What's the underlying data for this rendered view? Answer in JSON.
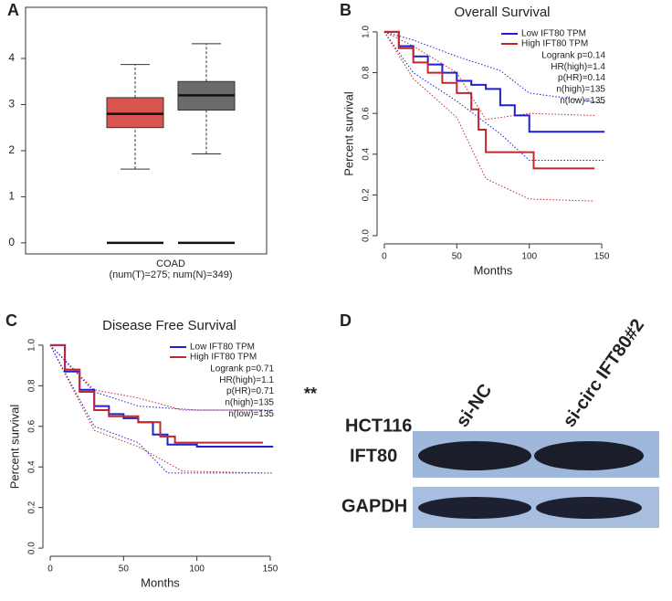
{
  "panels": [
    "A",
    "B",
    "C",
    "D"
  ],
  "significance": "**",
  "chart_data": [
    {
      "type": "box",
      "xlabel": "COAD",
      "note": "(num(T)=275; num(N)=349)",
      "ylim": [
        -0.24,
        5.11
      ],
      "yticks": [
        0,
        1,
        2,
        3,
        4
      ],
      "boxes": [
        {
          "color": "#d9534f",
          "min": 1.6,
          "q1": 2.5,
          "median": 2.8,
          "q3": 3.15,
          "max": 3.87,
          "baseline": 0
        },
        {
          "color": "#6b6b6b",
          "min": 1.93,
          "q1": 2.88,
          "median": 3.2,
          "q3": 3.5,
          "max": 4.32,
          "baseline": 0
        }
      ]
    },
    {
      "type": "line",
      "title": "Overall Survival",
      "xlabel": "Months",
      "ylabel": "Percent survival",
      "xlim": [
        -5,
        155
      ],
      "ylim": [
        -0.04,
        1.04
      ],
      "xticks": [
        0,
        50,
        100,
        150
      ],
      "yticks": [
        {
          "value": 0,
          "label": "0.0"
        },
        0.2,
        0.4,
        0.6,
        0.8,
        {
          "value": 1,
          "label": "1.0"
        }
      ],
      "notes": [
        "Logrank p=0.14",
        "HR(high)=1.4",
        "p(HR)=0.14",
        "n(high)=135",
        "n(low)=135"
      ],
      "series": [
        {
          "name": "Low IFT80 TPM",
          "color": "#1f1fd1",
          "x": [
            0,
            10,
            10,
            20,
            20,
            30,
            30,
            40,
            40,
            50,
            50,
            60,
            60,
            70,
            70,
            80,
            80,
            90,
            90,
            100,
            100,
            152
          ],
          "values": [
            1,
            1,
            0.93,
            0.93,
            0.88,
            0.88,
            0.84,
            0.84,
            0.8,
            0.8,
            0.76,
            0.76,
            0.74,
            0.74,
            0.72,
            0.72,
            0.64,
            0.64,
            0.59,
            0.59,
            0.51,
            0.51
          ]
        },
        {
          "name": "High IFT80 TPM",
          "color": "#c0282b",
          "x": [
            0,
            10,
            10,
            20,
            20,
            30,
            30,
            40,
            40,
            50,
            50,
            60,
            60,
            65,
            65,
            70,
            70,
            103,
            103,
            145
          ],
          "values": [
            1,
            1,
            0.92,
            0.92,
            0.85,
            0.85,
            0.8,
            0.8,
            0.75,
            0.75,
            0.7,
            0.7,
            0.62,
            0.62,
            0.52,
            0.52,
            0.41,
            0.41,
            0.33,
            0.33
          ]
        }
      ],
      "bands": [
        {
          "color": "#1f1fd1",
          "x": [
            0,
            20,
            50,
            80,
            100,
            152
          ],
          "values": [
            1,
            0.96,
            0.88,
            0.81,
            0.7,
            0.65
          ]
        },
        {
          "color": "#1f1fd1",
          "x": [
            0,
            20,
            50,
            80,
            100,
            152
          ],
          "values": [
            1,
            0.8,
            0.66,
            0.5,
            0.37,
            0.37
          ]
        },
        {
          "color": "#c0282b",
          "x": [
            0,
            20,
            50,
            70,
            100,
            145
          ],
          "values": [
            1,
            0.93,
            0.8,
            0.57,
            0.6,
            0.59
          ]
        },
        {
          "color": "#c0282b",
          "x": [
            0,
            20,
            50,
            70,
            100,
            145
          ],
          "values": [
            1,
            0.77,
            0.58,
            0.28,
            0.18,
            0.17
          ]
        }
      ]
    },
    {
      "type": "line",
      "title": "Disease Free Survival",
      "xlabel": "Months",
      "ylabel": "Percent survival",
      "xlim": [
        -5,
        155
      ],
      "ylim": [
        -0.04,
        1.04
      ],
      "xticks": [
        0,
        50,
        100,
        150
      ],
      "yticks": [
        {
          "value": 0,
          "label": "0.0"
        },
        0.2,
        0.4,
        0.6,
        0.8,
        {
          "value": 1,
          "label": "1.0"
        }
      ],
      "notes": [
        "Logrank p=0.71",
        "HR(high)=1.1",
        "p(HR)=0.71",
        "n(high)=135",
        "n(low)=135"
      ],
      "series": [
        {
          "name": "Low IFT80 TPM",
          "color": "#1f1fd1",
          "x": [
            0,
            10,
            10,
            20,
            20,
            30,
            30,
            40,
            40,
            50,
            50,
            60,
            60,
            70,
            70,
            80,
            80,
            100,
            100,
            152
          ],
          "values": [
            1,
            1,
            0.87,
            0.87,
            0.78,
            0.78,
            0.7,
            0.7,
            0.66,
            0.66,
            0.64,
            0.64,
            0.62,
            0.62,
            0.56,
            0.56,
            0.51,
            0.51,
            0.5,
            0.5
          ]
        },
        {
          "name": "High IFT80 TPM",
          "color": "#c0282b",
          "x": [
            0,
            10,
            10,
            20,
            20,
            30,
            30,
            40,
            40,
            60,
            60,
            75,
            75,
            85,
            85,
            145
          ],
          "values": [
            1,
            1,
            0.88,
            0.88,
            0.77,
            0.77,
            0.68,
            0.68,
            0.65,
            0.65,
            0.62,
            0.62,
            0.55,
            0.55,
            0.52,
            0.52
          ]
        }
      ],
      "bands": [
        {
          "color": "#c0282b",
          "x": [
            0,
            30,
            60,
            90,
            145
          ],
          "values": [
            1,
            0.78,
            0.74,
            0.68,
            0.68
          ]
        },
        {
          "color": "#1f1fd1",
          "x": [
            0,
            30,
            60,
            100,
            152
          ],
          "values": [
            1,
            0.77,
            0.7,
            0.68,
            0.68
          ]
        },
        {
          "color": "#c0282b",
          "x": [
            0,
            30,
            60,
            90,
            145
          ],
          "values": [
            1,
            0.58,
            0.5,
            0.38,
            0.37
          ]
        },
        {
          "color": "#1f1fd1",
          "x": [
            0,
            30,
            60,
            80,
            152
          ],
          "values": [
            1,
            0.6,
            0.52,
            0.37,
            0.37
          ]
        }
      ]
    }
  ],
  "blot": {
    "cell_line": "HCT116",
    "lanes": [
      "si-NC",
      "si-circ IFT80#2"
    ],
    "rows": [
      "IFT80",
      "GAPDH"
    ]
  }
}
